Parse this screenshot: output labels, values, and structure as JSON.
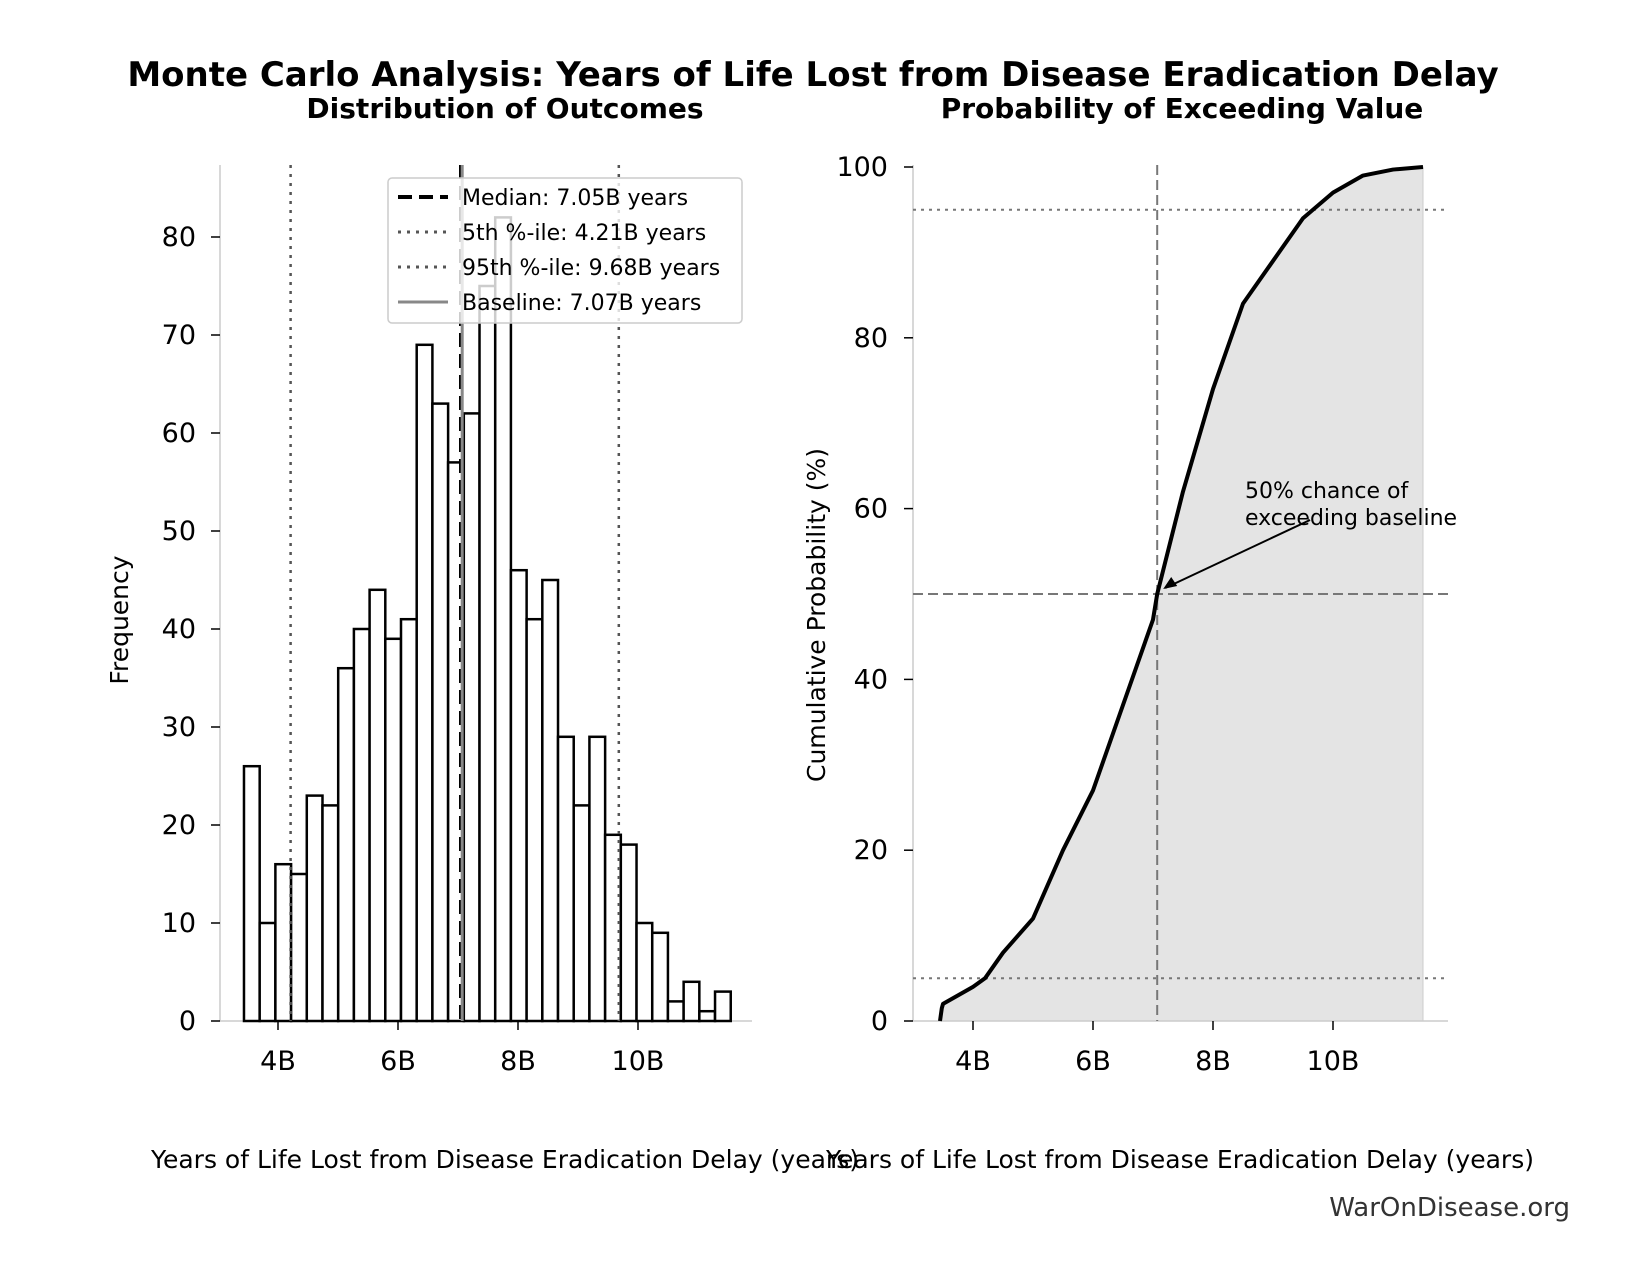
{
  "title": "Monte Carlo Analysis: Years of Life Lost from Disease Eradication Delay",
  "watermark": "WarOnDisease.org",
  "chart_data": [
    {
      "type": "bar",
      "subtype": "histogram",
      "title": "Distribution of Outcomes",
      "xlabel": "Years of Life Lost from Disease Eradication Delay (years)",
      "ylabel": "Frequency",
      "bin_start": 3433000000.0,
      "bin_width": 261700000.0,
      "values": [
        26,
        10,
        16,
        15,
        23,
        22,
        36,
        40,
        44,
        39,
        41,
        69,
        63,
        57,
        62,
        75,
        82,
        46,
        41,
        45,
        29,
        22,
        29,
        19,
        18,
        10,
        9,
        2,
        4,
        1,
        3
      ],
      "xlim": [
        3000000000.0,
        11900000000.0
      ],
      "ylim": [
        0,
        87
      ],
      "xticks": [
        {
          "v": 4000000000.0,
          "label": "4B"
        },
        {
          "v": 6000000000.0,
          "label": "6B"
        },
        {
          "v": 8000000000.0,
          "label": "8B"
        },
        {
          "v": 10000000000.0,
          "label": "10B"
        }
      ],
      "yticks": [
        0,
        10,
        20,
        30,
        40,
        50,
        60,
        70,
        80
      ],
      "vlines": [
        {
          "name": "Median: 7.05B years",
          "x": 7050000000.0,
          "style": "dashed",
          "color": "#000000"
        },
        {
          "name": "5th %-ile: 4.21B years",
          "x": 4210000000.0,
          "style": "dotted",
          "color": "#555555"
        },
        {
          "name": "95th %-ile: 9.68B years",
          "x": 9680000000.0,
          "style": "dotted",
          "color": "#555555"
        },
        {
          "name": "Baseline: 7.07B years",
          "x": 7070000000.0,
          "style": "solid",
          "color": "#888888"
        }
      ],
      "legend": "top-right"
    },
    {
      "type": "area",
      "title": "Probability of Exceeding Value",
      "xlabel": "Years of Life Lost from Disease Eradication Delay (years)",
      "ylabel": "Cumulative Probability (%)",
      "x": [
        3450000000.0,
        3480000000.0,
        3500000000.0,
        4000000000.0,
        4200000000.0,
        4500000000.0,
        5000000000.0,
        5500000000.0,
        6000000000.0,
        6500000000.0,
        7000000000.0,
        7070000000.0,
        7500000000.0,
        8000000000.0,
        8500000000.0,
        9000000000.0,
        9500000000.0,
        10000000000.0,
        10500000000.0,
        11000000000.0,
        11500000000.0
      ],
      "y": [
        0,
        1.5,
        2,
        4,
        5,
        8,
        12,
        20,
        27,
        37,
        47,
        50,
        62,
        74,
        84,
        89,
        94,
        97,
        99,
        99.7,
        100
      ],
      "xlim": [
        3000000000.0,
        11900000000.0
      ],
      "ylim": [
        0,
        100
      ],
      "xticks": [
        {
          "v": 4000000000.0,
          "label": "4B"
        },
        {
          "v": 6000000000.0,
          "label": "6B"
        },
        {
          "v": 8000000000.0,
          "label": "8B"
        },
        {
          "v": 10000000000.0,
          "label": "10B"
        }
      ],
      "yticks": [
        0,
        20,
        40,
        60,
        80,
        100
      ],
      "hlines": [
        5,
        50,
        95
      ],
      "vline": 7070000000.0,
      "annotation": {
        "text": [
          "50% chance of",
          "exceeding baseline"
        ],
        "x": 7070000000.0,
        "y": 50
      }
    }
  ]
}
